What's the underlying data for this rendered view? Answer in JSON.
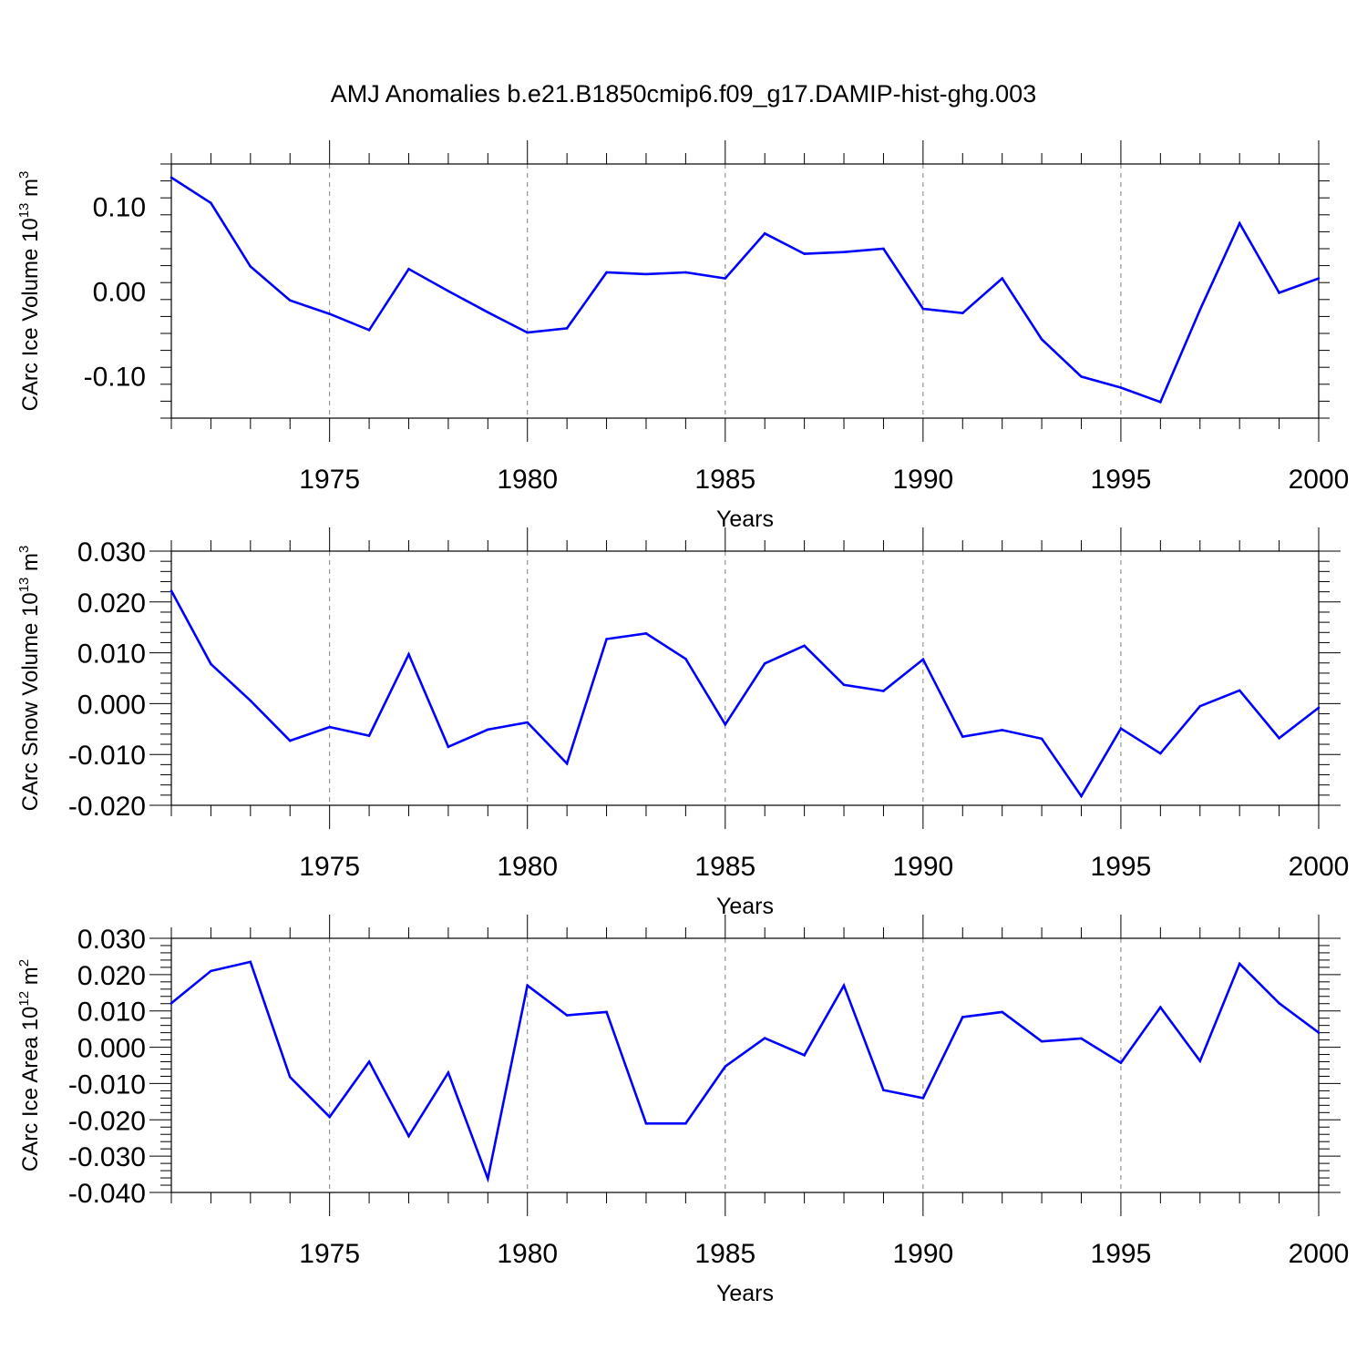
{
  "title": "AMJ Anomalies b.e21.B1850cmip6.f09_g17.DAMIP-hist-ghg.003",
  "colors": {
    "line": "#0000ff",
    "axis": "#000000",
    "grid": "#808080"
  },
  "chart_data": [
    {
      "type": "line",
      "xlabel": "Years",
      "ylabel_main": "CArc Ice Volume 10",
      "ylabel_exp": "13",
      "ylabel_unit": "m",
      "ylabel_unit_exp": "3",
      "xlim": [
        1971,
        2000
      ],
      "ylim": [
        -0.15,
        0.15
      ],
      "yticks": [
        -0.1,
        0.0,
        0.1
      ],
      "ytick_labels": [
        "-0.10",
        "0.00",
        "0.10"
      ],
      "xticks": [
        1975,
        1980,
        1985,
        1990,
        1995,
        2000
      ],
      "xtick_labels": [
        "1975",
        "1980",
        "1985",
        "1990",
        "1995",
        "2000"
      ],
      "x": [
        1971,
        1972,
        1973,
        1974,
        1975,
        1976,
        1977,
        1978,
        1979,
        1980,
        1981,
        1982,
        1983,
        1984,
        1985,
        1986,
        1987,
        1988,
        1989,
        1990,
        1991,
        1992,
        1993,
        1994,
        1995,
        1996,
        1997,
        1998,
        1999,
        2000
      ],
      "values": [
        0.134,
        0.104,
        0.029,
        -0.011,
        -0.027,
        -0.046,
        0.026,
        0.0,
        -0.025,
        -0.049,
        -0.044,
        0.022,
        0.02,
        0.022,
        0.015,
        0.068,
        0.044,
        0.046,
        0.05,
        -0.021,
        -0.026,
        0.015,
        -0.057,
        -0.101,
        -0.114,
        -0.131,
        -0.022,
        0.08,
        -0.002,
        0.015
      ]
    },
    {
      "type": "line",
      "xlabel": "Years",
      "ylabel_main": "CArc Snow Volume 10",
      "ylabel_exp": "13",
      "ylabel_unit": "m",
      "ylabel_unit_exp": "3",
      "xlim": [
        1971,
        2000
      ],
      "ylim": [
        -0.02,
        0.03
      ],
      "yticks": [
        -0.02,
        -0.01,
        0.0,
        0.01,
        0.02,
        0.03
      ],
      "ytick_labels": [
        "-0.020",
        "-0.010",
        "0.000",
        "0.010",
        "0.020",
        "0.030"
      ],
      "xticks": [
        1975,
        1980,
        1985,
        1990,
        1995,
        2000
      ],
      "xtick_labels": [
        "1975",
        "1980",
        "1985",
        "1990",
        "1995",
        "2000"
      ],
      "x": [
        1971,
        1972,
        1973,
        1974,
        1975,
        1976,
        1977,
        1978,
        1979,
        1980,
        1981,
        1982,
        1983,
        1984,
        1985,
        1986,
        1987,
        1988,
        1989,
        1990,
        1991,
        1992,
        1993,
        1994,
        1995,
        1996,
        1997,
        1998,
        1999,
        2000
      ],
      "values": [
        0.0222,
        0.0078,
        0.0006,
        -0.0073,
        -0.0046,
        -0.0063,
        0.0097,
        -0.0085,
        -0.0051,
        -0.0037,
        -0.0118,
        0.0127,
        0.0138,
        0.0088,
        -0.0041,
        0.0079,
        0.0114,
        0.0037,
        0.0025,
        0.0087,
        -0.0065,
        -0.0052,
        -0.0069,
        -0.0182,
        -0.0049,
        -0.0098,
        -0.0005,
        0.0026,
        -0.0068,
        -0.0008
      ]
    },
    {
      "type": "line",
      "xlabel": "Years",
      "ylabel_main": "CArc Ice Area 10",
      "ylabel_exp": "12",
      "ylabel_unit": "m",
      "ylabel_unit_exp": "2",
      "xlim": [
        1971,
        2000
      ],
      "ylim": [
        -0.04,
        0.03
      ],
      "yticks": [
        -0.04,
        -0.03,
        -0.02,
        -0.01,
        0.0,
        0.01,
        0.02,
        0.03
      ],
      "ytick_labels": [
        "-0.040",
        "-0.030",
        "-0.020",
        "-0.010",
        "0.000",
        "0.010",
        "0.020",
        "0.030"
      ],
      "xticks": [
        1975,
        1980,
        1985,
        1990,
        1995,
        2000
      ],
      "xtick_labels": [
        "1975",
        "1980",
        "1985",
        "1990",
        "1995",
        "2000"
      ],
      "x": [
        1971,
        1972,
        1973,
        1974,
        1975,
        1976,
        1977,
        1978,
        1979,
        1980,
        1981,
        1982,
        1983,
        1984,
        1985,
        1986,
        1987,
        1988,
        1989,
        1990,
        1991,
        1992,
        1993,
        1994,
        1995,
        1996,
        1997,
        1998,
        1999,
        2000
      ],
      "values": [
        0.0121,
        0.021,
        0.0235,
        -0.0082,
        -0.0192,
        -0.004,
        -0.0245,
        -0.007,
        -0.0362,
        0.017,
        0.0088,
        0.0097,
        -0.021,
        -0.021,
        -0.0053,
        0.0025,
        -0.0022,
        0.017,
        -0.0118,
        -0.014,
        0.0083,
        0.0097,
        0.0016,
        0.0024,
        -0.0043,
        0.011,
        -0.0038,
        0.023,
        0.0121,
        0.004
      ]
    }
  ]
}
